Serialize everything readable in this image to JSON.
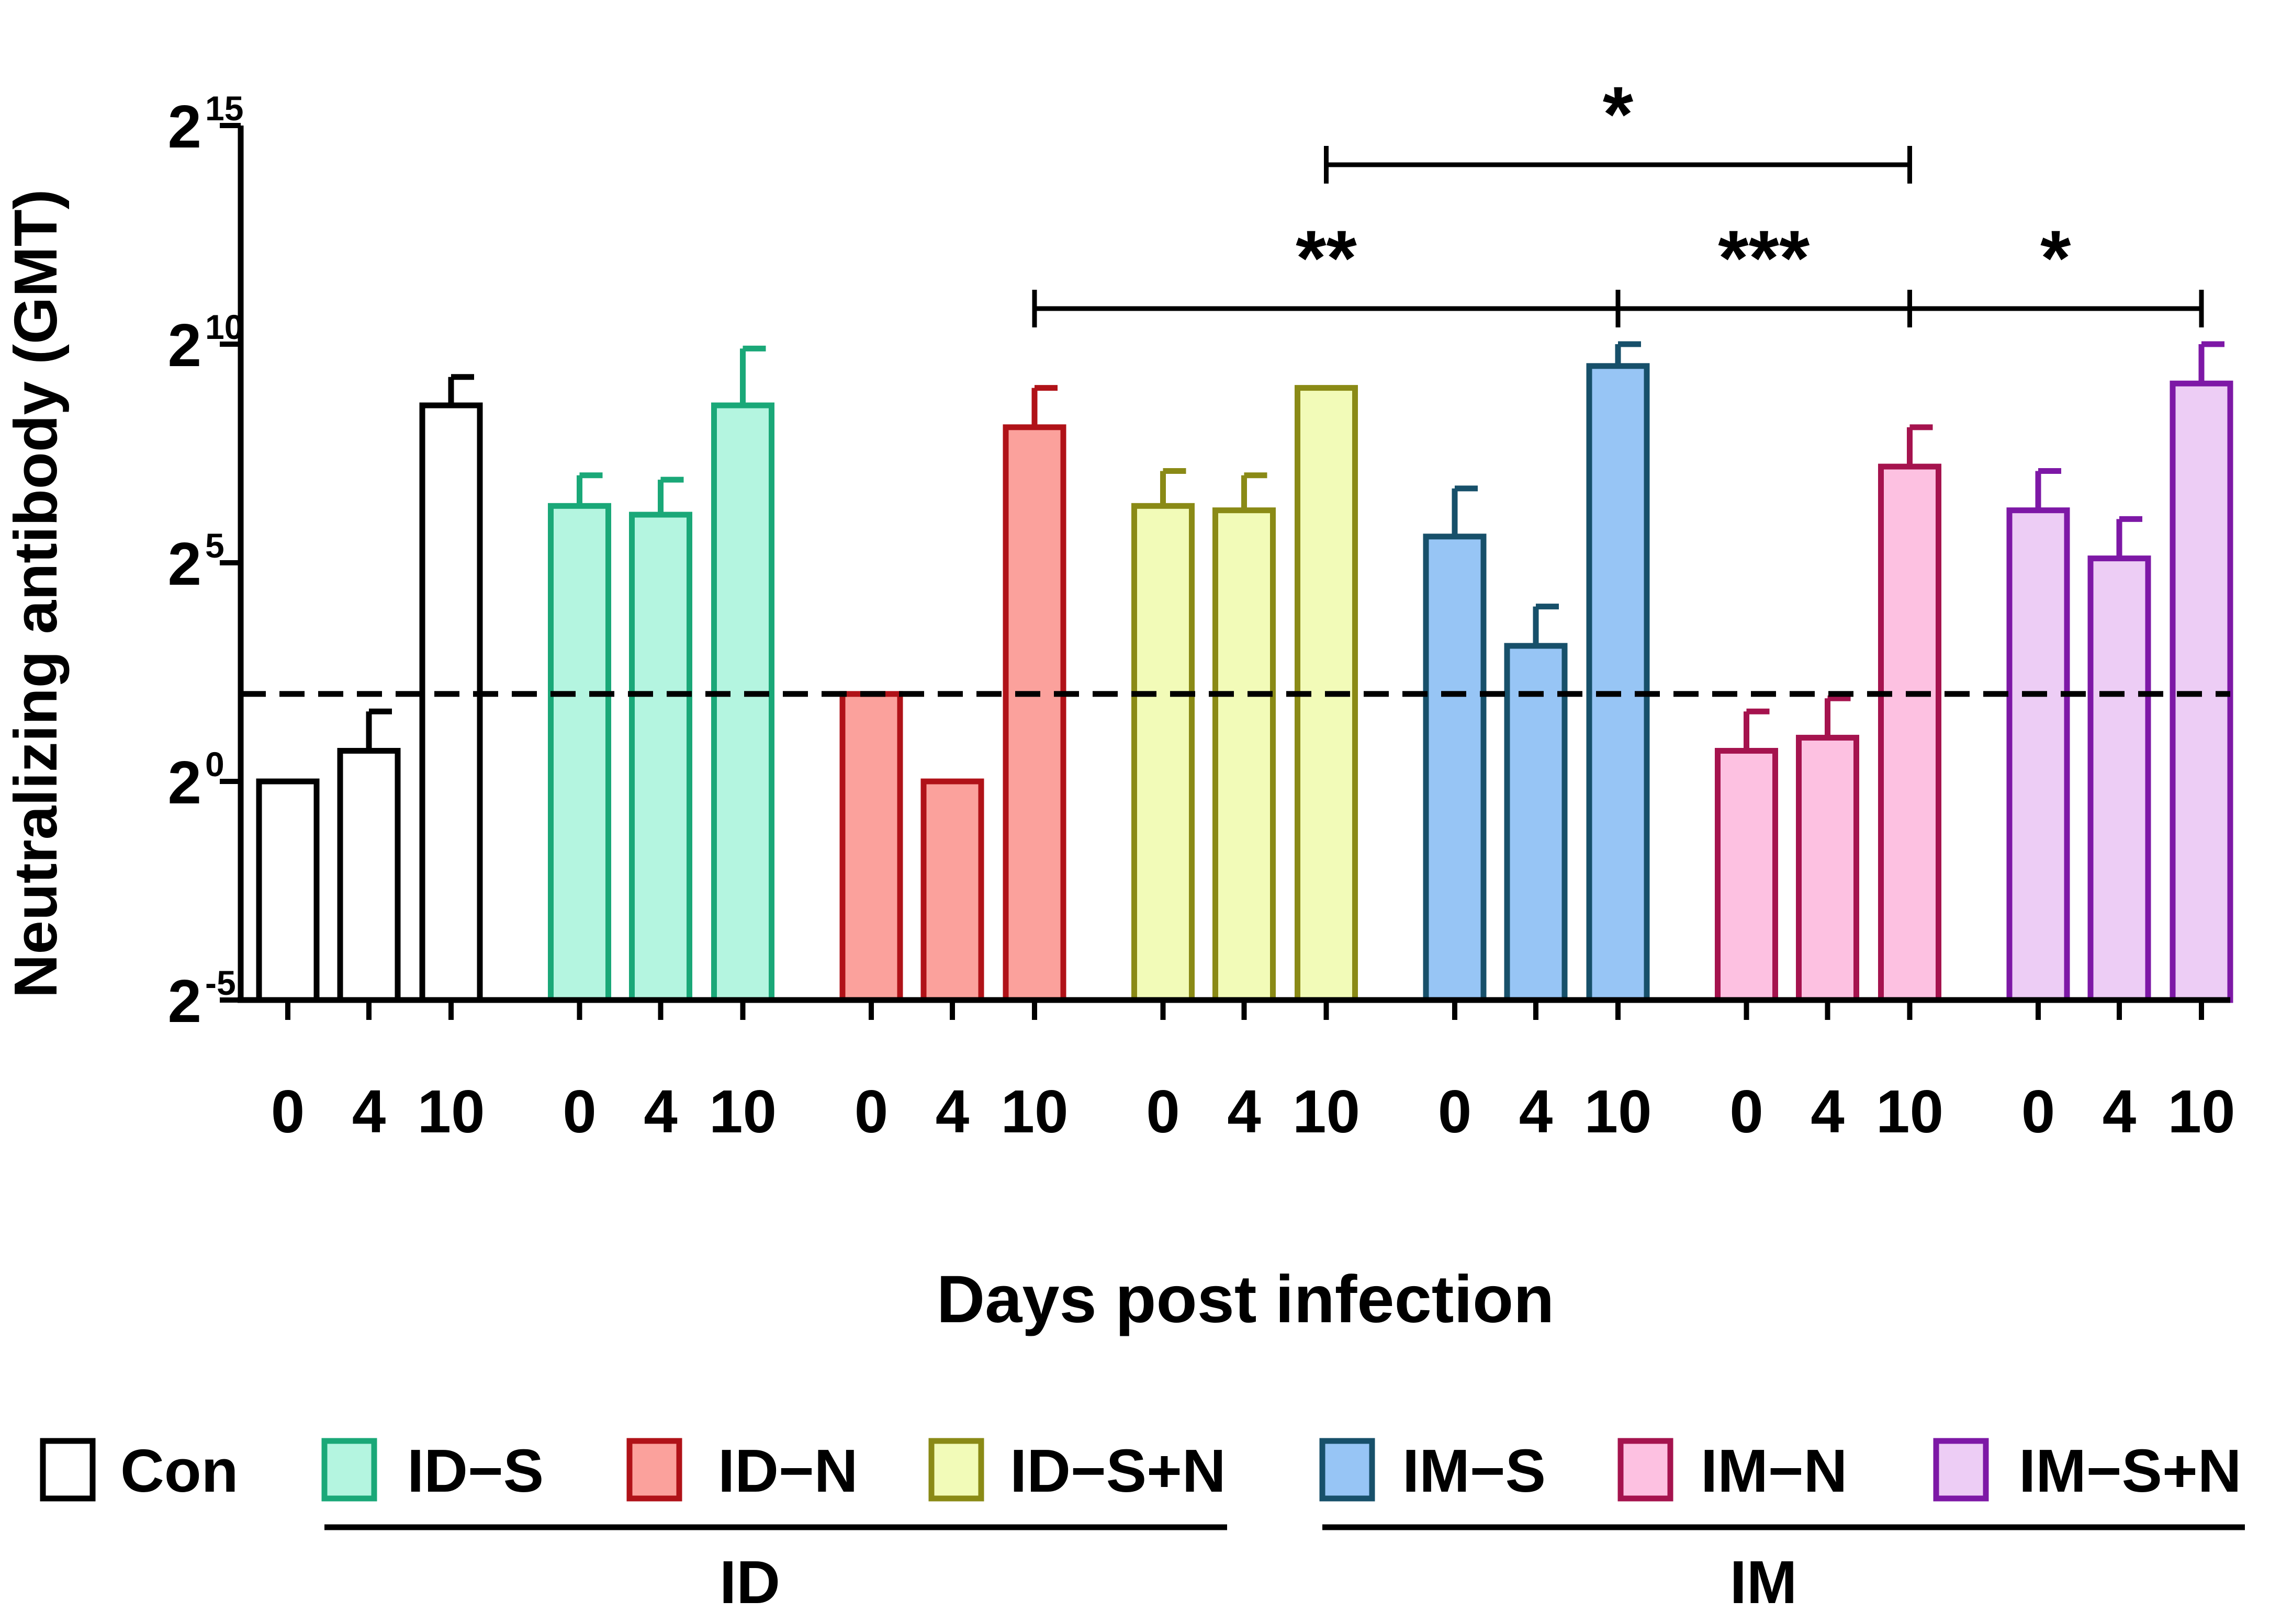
{
  "chart_data": {
    "type": "bar",
    "ylabel": "Neutralizing antibody (GMT)",
    "xlabel": "Days post infection",
    "y_scale": "log2",
    "ylim": [
      -5,
      15
    ],
    "y_ticks": [
      {
        "value": 15,
        "base": "2",
        "exp": "15"
      },
      {
        "value": 10,
        "base": "2",
        "exp": "10"
      },
      {
        "value": 5,
        "base": "2",
        "exp": "5"
      },
      {
        "value": 0,
        "base": "2",
        "exp": "0"
      },
      {
        "value": -5,
        "base": "2",
        "exp": "-5"
      }
    ],
    "days": [
      "0",
      "4",
      "10"
    ],
    "threshold_log2": 2,
    "series": [
      {
        "name": "Con",
        "fill": "#ffffff",
        "stroke": "#000000",
        "values": [
          0,
          0.7,
          8.6
        ],
        "errors": [
          0,
          0.9,
          0.65
        ],
        "group": ""
      },
      {
        "name": "ID−S",
        "fill": "#b4f5e0",
        "stroke": "#1aa878",
        "values": [
          6.3,
          6.1,
          8.6
        ],
        "errors": [
          0.7,
          0.8,
          1.3
        ],
        "group": "ID"
      },
      {
        "name": "ID−N",
        "fill": "#fba19c",
        "stroke": "#b01218",
        "values": [
          2,
          0,
          8.1
        ],
        "errors": [
          0,
          0,
          0.9
        ],
        "group": "ID"
      },
      {
        "name": "ID−S+N",
        "fill": "#f2fbb8",
        "stroke": "#8a8a16",
        "values": [
          6.3,
          6.2,
          9.0
        ],
        "errors": [
          0.8,
          0.8,
          0
        ],
        "group": "ID"
      },
      {
        "name": "IM−S",
        "fill": "#97c5f5",
        "stroke": "#17506a",
        "values": [
          5.6,
          3.1,
          9.5
        ],
        "errors": [
          1.1,
          0.9,
          0.5
        ],
        "group": "IM"
      },
      {
        "name": "IM−N",
        "fill": "#fdc1e1",
        "stroke": "#a5134e",
        "values": [
          0.7,
          1.0,
          7.2
        ],
        "errors": [
          0.9,
          0.9,
          0.9
        ],
        "group": "IM"
      },
      {
        "name": "IM−S+N",
        "fill": "#edcdf5",
        "stroke": "#7d18a6",
        "values": [
          6.2,
          5.1,
          9.1
        ],
        "errors": [
          0.9,
          0.9,
          0.9
        ],
        "group": "IM"
      }
    ],
    "significance": [
      {
        "from_group": 2,
        "to_group": 4,
        "label": "**"
      },
      {
        "from_group": 4,
        "to_group": 5,
        "label": "***"
      },
      {
        "from_group": 5,
        "to_group": 6,
        "label": "*"
      },
      {
        "from_group": 3,
        "to_group": 5,
        "label": "*"
      }
    ],
    "legend_groups": [
      "ID",
      "IM"
    ]
  }
}
